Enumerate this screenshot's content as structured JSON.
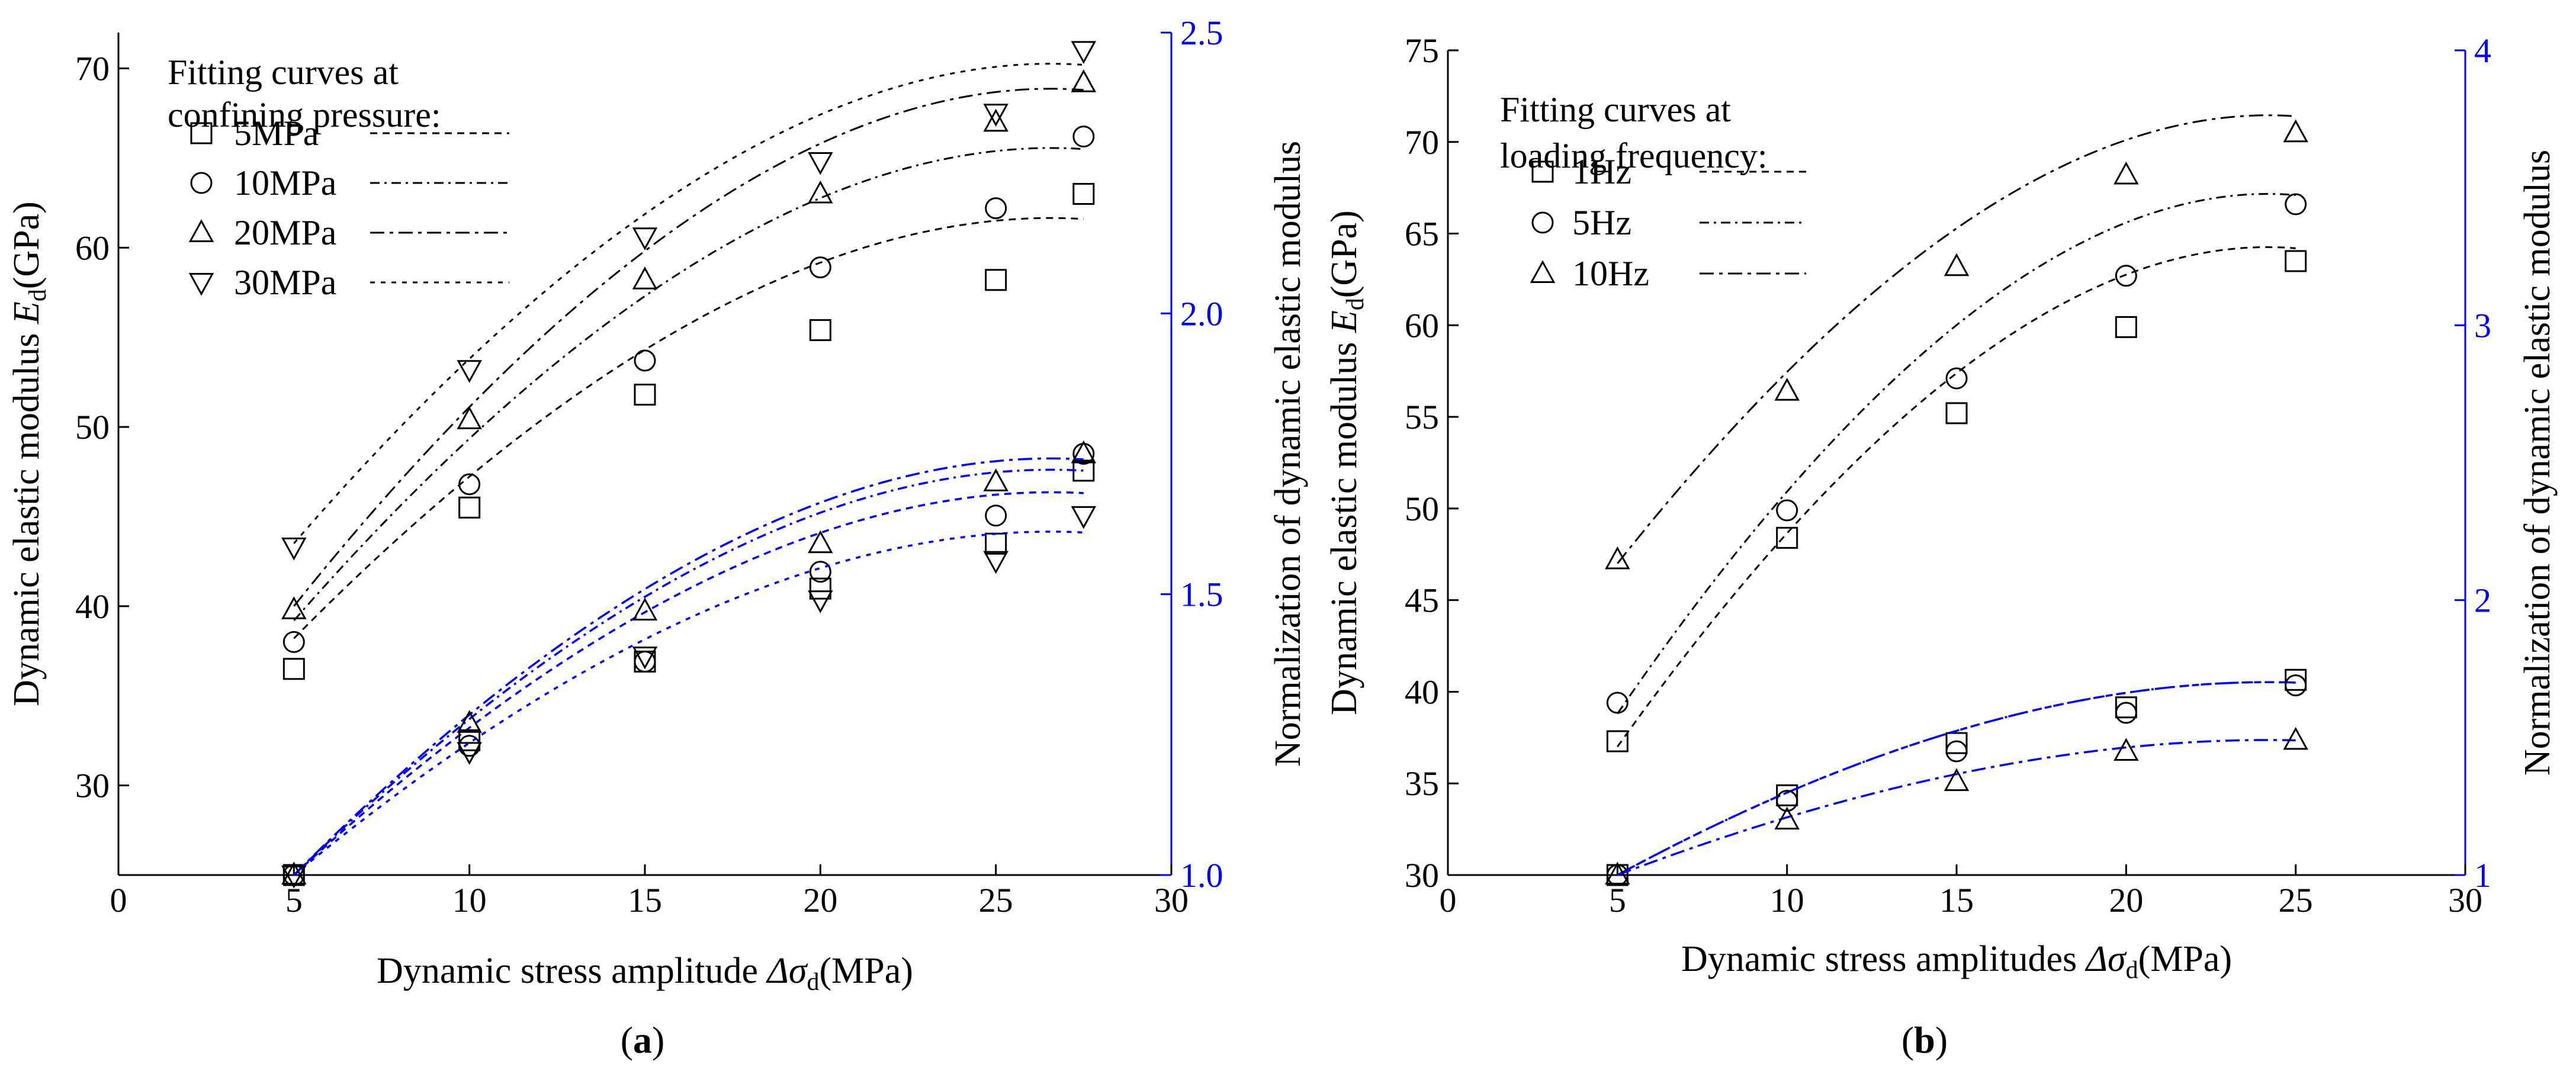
{
  "figure": {
    "panel_labels": [
      {
        "open": "(",
        "letter": "a",
        "close": ")"
      },
      {
        "open": "(",
        "letter": "b",
        "close": ")"
      }
    ]
  },
  "chart_data": [
    {
      "type": "scatter",
      "panel": "a",
      "xlabel": {
        "prefix": "Dynamic stress amplitude ",
        "symbol": "Δσ",
        "sub": "d",
        "suffix": "(MPa)"
      },
      "ylabel": {
        "prefix": "Dynamic elastic modulus ",
        "symbol": "E",
        "sub": "d",
        "suffix": "(GPa)"
      },
      "y2label": "Normalization of dynamic elastic modulus",
      "xlim": [
        0,
        30
      ],
      "ylim": [
        25,
        72
      ],
      "y2lim": [
        1.0,
        2.5
      ],
      "xticks": [
        "0",
        "5",
        "10",
        "15",
        "20",
        "25",
        "30"
      ],
      "yticks": [
        "30",
        "40",
        "50",
        "60",
        "70"
      ],
      "y2ticks": [
        "1.0",
        "1.5",
        "2.0",
        "2.5"
      ],
      "legend": {
        "title_lines": [
          "Fitting curves at",
          "confining pressure:"
        ],
        "position": "top-left"
      },
      "colors": {
        "primary": "#000000",
        "normalized": "#0000ff"
      },
      "series": [
        {
          "name": "5MPa",
          "marker": "square",
          "x": [
            5,
            10,
            15,
            20,
            25,
            27.5
          ],
          "values": [
            36.5,
            45.5,
            51.8,
            55.4,
            58.2,
            63.0
          ],
          "normalized": [
            1.0,
            1.24,
            1.38,
            1.51,
            1.59,
            1.72
          ],
          "fit": [
            [
              5,
              38.2
            ],
            [
              27.5,
              61.6
            ]
          ],
          "norm_fit": [
            [
              5,
              1.0
            ],
            [
              27.5,
              1.68
            ]
          ]
        },
        {
          "name": "10MPa",
          "marker": "circle",
          "x": [
            5,
            10,
            15,
            20,
            25,
            27.5
          ],
          "values": [
            38.0,
            46.8,
            53.7,
            58.9,
            62.2,
            66.2
          ],
          "normalized": [
            1.0,
            1.23,
            1.38,
            1.54,
            1.64,
            1.75
          ],
          "fit": [
            [
              5,
              39.2
            ],
            [
              27.5,
              65.5
            ]
          ],
          "norm_fit": [
            [
              5,
              1.0
            ],
            [
              27.5,
              1.72
            ]
          ]
        },
        {
          "name": "20MPa",
          "marker": "triangle-up",
          "x": [
            5,
            10,
            15,
            20,
            25,
            27.5
          ],
          "values": [
            39.8,
            50.4,
            58.2,
            63.0,
            67.0,
            69.2
          ],
          "normalized": [
            1.0,
            1.27,
            1.47,
            1.59,
            1.7,
            1.75
          ],
          "fit": [
            [
              5,
              40.0
            ],
            [
              27.5,
              68.8
            ]
          ],
          "norm_fit": [
            [
              5,
              1.0
            ],
            [
              27.5,
              1.74
            ]
          ]
        },
        {
          "name": "30MPa",
          "marker": "triangle-down",
          "x": [
            5,
            10,
            15,
            20,
            25,
            27.5
          ],
          "values": [
            43.3,
            53.2,
            60.6,
            64.8,
            67.5,
            71.0
          ],
          "normalized": [
            1.0,
            1.22,
            1.39,
            1.49,
            1.56,
            1.64
          ],
          "fit": [
            [
              5,
              43.5
            ],
            [
              27.5,
              70.2
            ]
          ],
          "norm_fit": [
            [
              5,
              1.0
            ],
            [
              27.5,
              1.61
            ]
          ]
        }
      ]
    },
    {
      "type": "scatter",
      "panel": "b",
      "xlabel": {
        "prefix": "Dynamic stress amplitudes ",
        "symbol": "Δσ",
        "sub": "d",
        "suffix": "(MPa)"
      },
      "ylabel": {
        "prefix": "Dynamic elastic modulus ",
        "symbol": "E",
        "sub": "d",
        "suffix": "(GPa)"
      },
      "y2label": "Normalization of dynamic elastic modulus",
      "xlim": [
        0,
        30
      ],
      "ylim": [
        30,
        75
      ],
      "y2lim": [
        1,
        4
      ],
      "xticks": [
        "0",
        "5",
        "10",
        "15",
        "20",
        "25",
        "30"
      ],
      "yticks": [
        "30",
        "35",
        "40",
        "45",
        "50",
        "55",
        "60",
        "65",
        "70",
        "75"
      ],
      "y2ticks": [
        "1",
        "2",
        "3",
        "4"
      ],
      "legend": {
        "title_lines": [
          "Fitting curves at",
          "loading frequency:"
        ],
        "position": "top-left"
      },
      "colors": {
        "primary": "#000000",
        "normalized": "#0000ff"
      },
      "series": [
        {
          "name": "1Hz",
          "marker": "square",
          "x": [
            5,
            10,
            15,
            20,
            25
          ],
          "values": [
            37.3,
            48.4,
            55.2,
            59.9,
            63.5
          ],
          "normalized": [
            1.0,
            1.29,
            1.48,
            1.61,
            1.71
          ],
          "fit": [
            [
              5,
              37.0
            ],
            [
              25,
              64.2
            ]
          ],
          "norm_fit": [
            [
              5,
              1.0
            ],
            [
              25,
              1.7
            ]
          ]
        },
        {
          "name": "5Hz",
          "marker": "circle",
          "x": [
            5,
            10,
            15,
            20,
            25
          ],
          "values": [
            39.4,
            49.9,
            57.1,
            62.7,
            66.6
          ],
          "normalized": [
            1.0,
            1.27,
            1.45,
            1.59,
            1.69
          ],
          "fit": [
            [
              5,
              38.8
            ],
            [
              25,
              67.1
            ]
          ],
          "norm_fit": [
            [
              5,
              1.0
            ],
            [
              25,
              1.7
            ]
          ]
        },
        {
          "name": "10Hz",
          "marker": "triangle-up",
          "x": [
            5,
            10,
            15,
            20,
            25
          ],
          "values": [
            47.2,
            56.4,
            63.2,
            68.2,
            70.5
          ],
          "normalized": [
            1.0,
            1.2,
            1.34,
            1.45,
            1.49
          ],
          "fit": [
            [
              5,
              47.0
            ],
            [
              25,
              71.4
            ]
          ],
          "norm_fit": [
            [
              5,
              1.0
            ],
            [
              25,
              1.49
            ]
          ]
        }
      ]
    }
  ]
}
